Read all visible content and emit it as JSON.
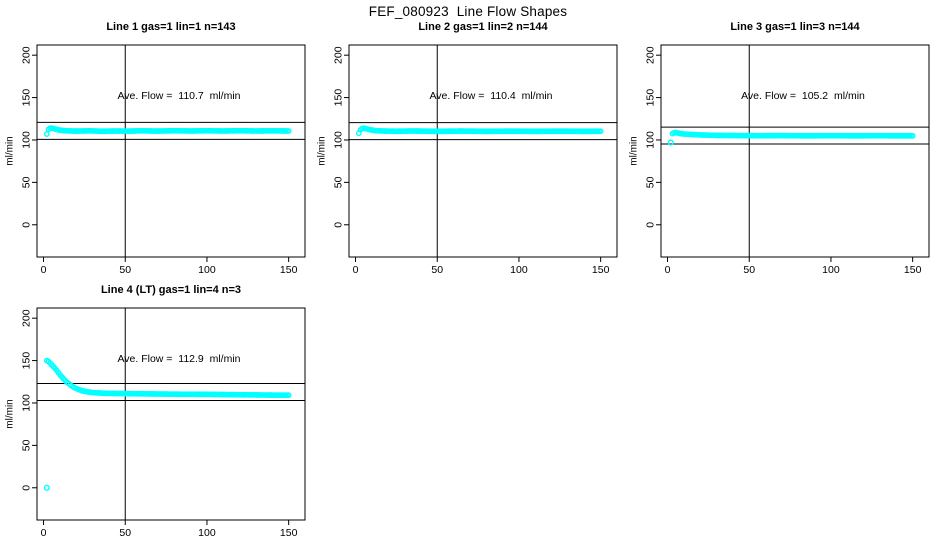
{
  "page_title": "FEF_080923  Line Flow Shapes",
  "colors": {
    "point": "#00FFFF",
    "axis": "#000000",
    "background": "#FFFFFF",
    "text": "#000000"
  },
  "axes": {
    "x_ticks": [
      0,
      50,
      100,
      150
    ],
    "y_ticks": [
      0,
      50,
      100,
      150,
      200
    ],
    "ylabel": "ml/min",
    "xlabel": "",
    "x_domain": [
      -4,
      160
    ],
    "y_domain": [
      -38,
      212
    ],
    "ref_vline_x": 50,
    "grid": false,
    "point_style": "open-circle"
  },
  "chart_data": [
    {
      "type": "scatter",
      "title": "Line 1 gas=1 lin=1 n=143",
      "annotation": "Ave. Flow =  110.7  ml/min",
      "ave_flow_ml_min": 110.7,
      "n": 143,
      "ref_hlines": [
        100.7,
        120.7
      ],
      "x_range": [
        2,
        150
      ],
      "points_n": 143,
      "anchors": [
        [
          2,
          107
        ],
        [
          3,
          112.5
        ],
        [
          4,
          114
        ],
        [
          5,
          114
        ],
        [
          6,
          113.5
        ],
        [
          8,
          112.5
        ],
        [
          10,
          111.5
        ],
        [
          14,
          110.8
        ],
        [
          20,
          110.5
        ],
        [
          28,
          110.8
        ],
        [
          35,
          110.3
        ],
        [
          45,
          110.6
        ],
        [
          50,
          110.4
        ],
        [
          60,
          110.8
        ],
        [
          70,
          110.5
        ],
        [
          80,
          110.9
        ],
        [
          90,
          110.6
        ],
        [
          100,
          110.9
        ],
        [
          110,
          110.6
        ],
        [
          120,
          110.9
        ],
        [
          130,
          110.6
        ],
        [
          140,
          110.8
        ],
        [
          150,
          110.6
        ]
      ],
      "outliers": []
    },
    {
      "type": "scatter",
      "title": "Line 2 gas=1 lin=2 n=144",
      "annotation": "Ave. Flow =  110.4  ml/min",
      "ave_flow_ml_min": 110.4,
      "n": 144,
      "ref_hlines": [
        100.4,
        120.4
      ],
      "x_range": [
        2,
        150
      ],
      "points_n": 144,
      "anchors": [
        [
          2,
          108
        ],
        [
          3,
          112
        ],
        [
          4,
          113.5
        ],
        [
          5,
          114
        ],
        [
          7,
          113
        ],
        [
          9,
          112
        ],
        [
          12,
          111
        ],
        [
          18,
          110.5
        ],
        [
          25,
          110.3
        ],
        [
          35,
          110.6
        ],
        [
          50,
          110.2
        ],
        [
          65,
          110.5
        ],
        [
          80,
          110.2
        ],
        [
          95,
          110.4
        ],
        [
          110,
          110.2
        ],
        [
          125,
          110.4
        ],
        [
          140,
          110.2
        ],
        [
          150,
          110.3
        ]
      ],
      "outliers": []
    },
    {
      "type": "scatter",
      "title": "Line 3 gas=1 lin=3 n=144",
      "annotation": "Ave. Flow =  105.2  ml/min",
      "ave_flow_ml_min": 105.2,
      "n": 144,
      "ref_hlines": [
        95.2,
        115.2
      ],
      "x_range": [
        3,
        150
      ],
      "points_n": 143,
      "anchors": [
        [
          3,
          107.5
        ],
        [
          4,
          108.5
        ],
        [
          5,
          108.8
        ],
        [
          7,
          108
        ],
        [
          9,
          107.2
        ],
        [
          12,
          106.8
        ],
        [
          16,
          106.3
        ],
        [
          22,
          105.8
        ],
        [
          30,
          105.4
        ],
        [
          40,
          105.2
        ],
        [
          55,
          105
        ],
        [
          70,
          105.1
        ],
        [
          85,
          104.9
        ],
        [
          100,
          105
        ],
        [
          115,
          104.9
        ],
        [
          130,
          105
        ],
        [
          140,
          104.9
        ],
        [
          150,
          104.9
        ]
      ],
      "outliers": [
        [
          2,
          97
        ]
      ]
    },
    {
      "type": "scatter",
      "title": "Line 4 (LT) gas=1 lin=4 n=3",
      "annotation": "Ave. Flow =  112.9  ml/min",
      "ave_flow_ml_min": 112.9,
      "n": 3,
      "ref_hlines": [
        102.9,
        122.9
      ],
      "x_range": [
        2,
        150
      ],
      "points_n": 145,
      "anchors": [
        [
          2,
          150
        ],
        [
          3,
          149
        ],
        [
          4,
          147
        ],
        [
          5,
          145
        ],
        [
          6,
          143
        ],
        [
          7,
          141
        ],
        [
          8,
          138.5
        ],
        [
          9,
          136
        ],
        [
          10,
          133.5
        ],
        [
          11,
          131
        ],
        [
          12,
          129
        ],
        [
          13,
          127
        ],
        [
          14,
          125
        ],
        [
          15,
          123.5
        ],
        [
          16,
          122
        ],
        [
          17,
          120.5
        ],
        [
          18,
          119
        ],
        [
          19,
          118
        ],
        [
          20,
          117
        ],
        [
          22,
          115.5
        ],
        [
          24,
          114.3
        ],
        [
          26,
          113.4
        ],
        [
          28,
          112.8
        ],
        [
          30,
          112.3
        ],
        [
          34,
          111.8
        ],
        [
          38,
          111.4
        ],
        [
          45,
          111.2
        ],
        [
          55,
          110.9
        ],
        [
          70,
          110.6
        ],
        [
          85,
          110.3
        ],
        [
          100,
          110.2
        ],
        [
          115,
          109.8
        ],
        [
          130,
          109.5
        ],
        [
          140,
          109.3
        ],
        [
          150,
          109.2
        ]
      ],
      "outliers": [
        [
          2,
          0
        ]
      ]
    }
  ]
}
